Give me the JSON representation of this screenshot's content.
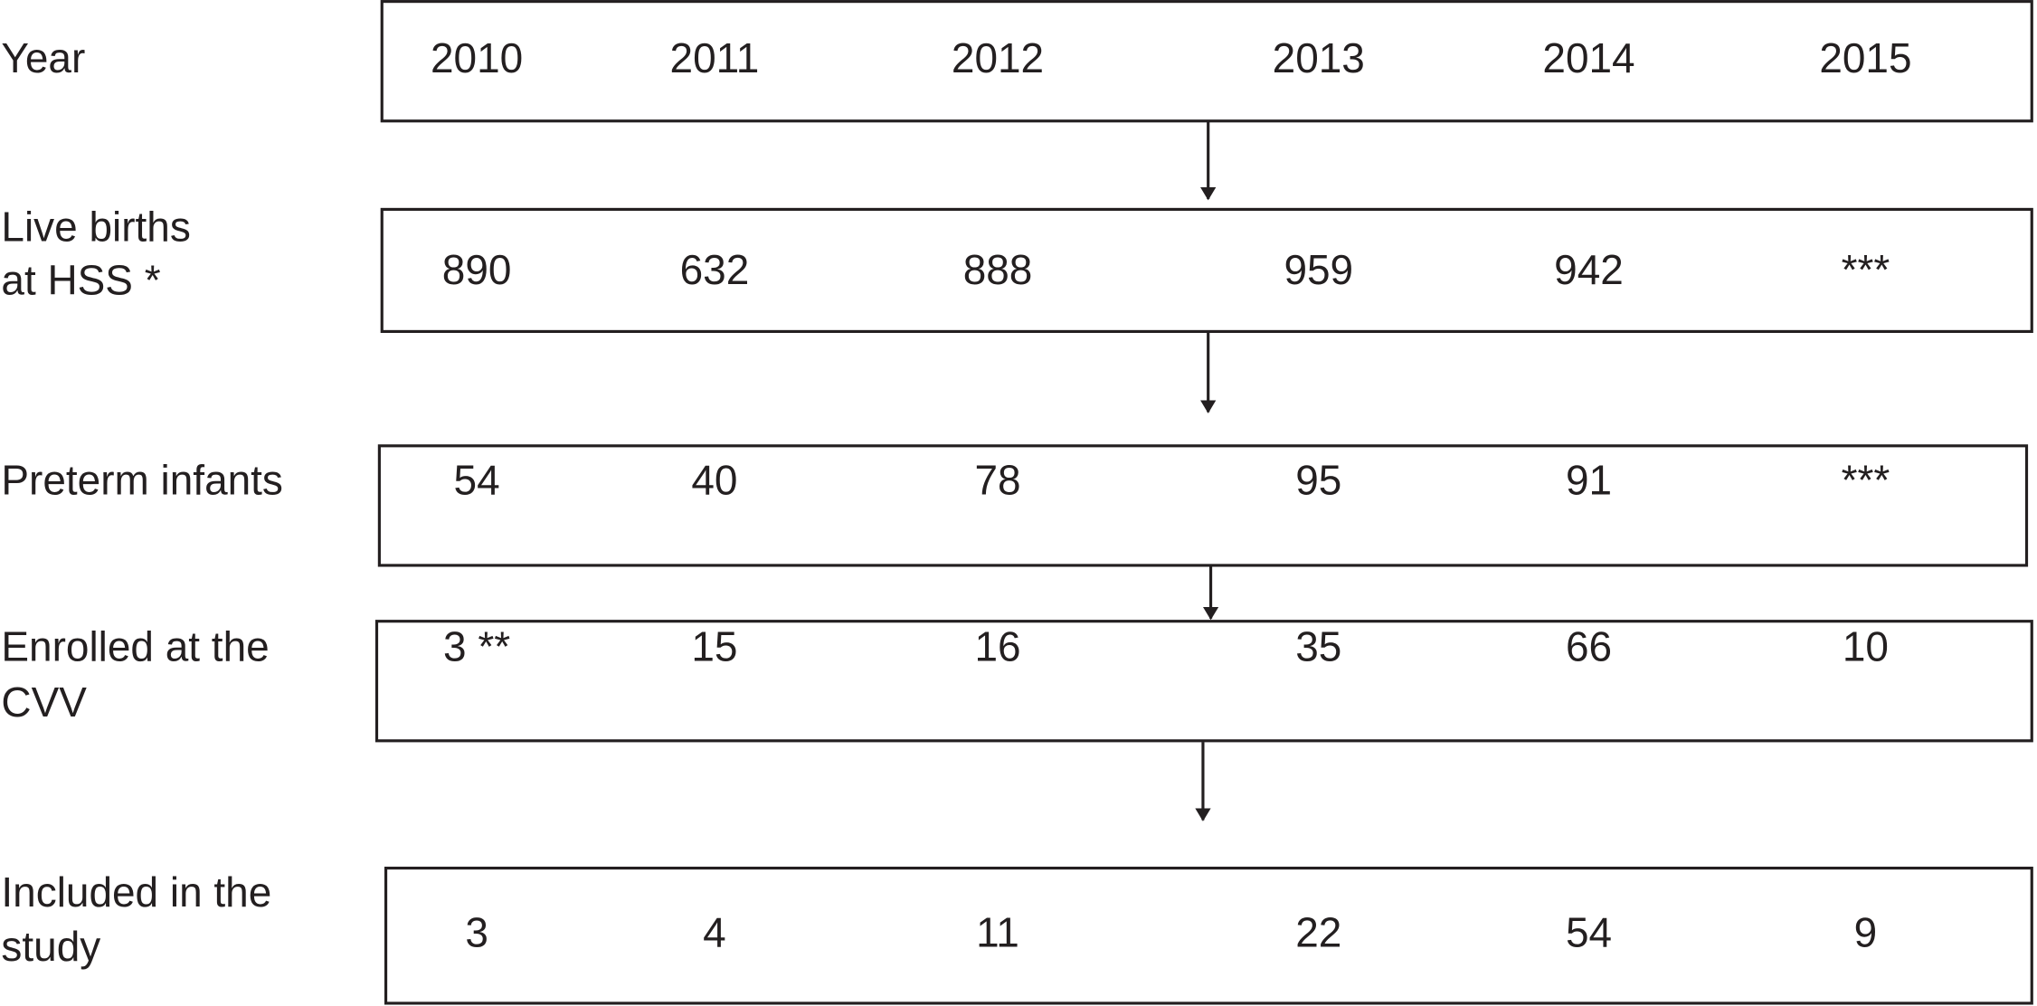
{
  "rows": [
    {
      "label": [
        "Year"
      ],
      "values": [
        "2010",
        "2011",
        "2012",
        "2013",
        "2014",
        "2015"
      ]
    },
    {
      "label": [
        "Live births",
        "at HSS *"
      ],
      "values": [
        "890",
        "632",
        "888",
        "959",
        "942",
        "***"
      ]
    },
    {
      "label": [
        "Preterm infants"
      ],
      "values": [
        "54",
        "40",
        "78",
        "95",
        "91",
        "***"
      ]
    },
    {
      "label": [
        "Enrolled at the",
        "CVV"
      ],
      "values": [
        "3 **",
        "15",
        "16",
        "35",
        "66",
        "10"
      ]
    },
    {
      "label": [
        "Included in the",
        "study"
      ],
      "values": [
        "3",
        "4",
        "11",
        "22",
        "54",
        "9"
      ]
    }
  ]
}
